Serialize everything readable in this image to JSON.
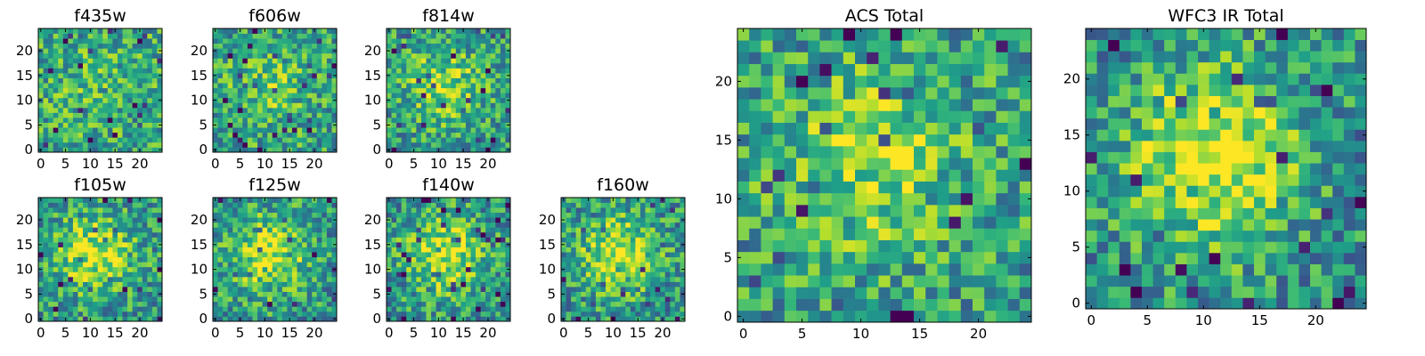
{
  "chart_data": [
    {
      "type": "heatmap",
      "title": "f435w",
      "colormap": "viridis",
      "grid_size": 25,
      "x_ticks": [
        "0",
        "5",
        "10",
        "15",
        "20"
      ],
      "y_ticks": [
        "0",
        "5",
        "10",
        "15",
        "20"
      ],
      "seed": 11,
      "blob_strength": 0.08
    },
    {
      "type": "heatmap",
      "title": "f606w",
      "colormap": "viridis",
      "grid_size": 25,
      "x_ticks": [
        "0",
        "5",
        "10",
        "15",
        "20"
      ],
      "y_ticks": [
        "0",
        "5",
        "10",
        "15",
        "20"
      ],
      "seed": 23,
      "blob_strength": 0.18
    },
    {
      "type": "heatmap",
      "title": "f814w",
      "colormap": "viridis",
      "grid_size": 25,
      "x_ticks": [
        "0",
        "5",
        "10",
        "15",
        "20"
      ],
      "y_ticks": [
        "0",
        "5",
        "10",
        "15",
        "20"
      ],
      "seed": 37,
      "blob_strength": 0.3
    },
    {
      "type": "heatmap",
      "title": "f105w",
      "colormap": "viridis",
      "grid_size": 25,
      "x_ticks": [
        "0",
        "5",
        "10",
        "15",
        "20"
      ],
      "y_ticks": [
        "0",
        "5",
        "10",
        "15",
        "20"
      ],
      "seed": 41,
      "blob_strength": 0.4
    },
    {
      "type": "heatmap",
      "title": "f125w",
      "colormap": "viridis",
      "grid_size": 25,
      "x_ticks": [
        "0",
        "5",
        "10",
        "15",
        "20"
      ],
      "y_ticks": [
        "0",
        "5",
        "10",
        "15",
        "20"
      ],
      "seed": 53,
      "blob_strength": 0.4
    },
    {
      "type": "heatmap",
      "title": "f140w",
      "colormap": "viridis",
      "grid_size": 25,
      "x_ticks": [
        "0",
        "5",
        "10",
        "15",
        "20"
      ],
      "y_ticks": [
        "0",
        "5",
        "10",
        "15",
        "20"
      ],
      "seed": 67,
      "blob_strength": 0.42
    },
    {
      "type": "heatmap",
      "title": "f160w",
      "colormap": "viridis",
      "grid_size": 25,
      "x_ticks": [
        "0",
        "5",
        "10",
        "15",
        "20"
      ],
      "y_ticks": [
        "0",
        "5",
        "10",
        "15",
        "20"
      ],
      "seed": 79,
      "blob_strength": 0.42
    },
    {
      "type": "heatmap",
      "title": "ACS Total",
      "colormap": "viridis",
      "grid_size": 25,
      "x_ticks": [
        "0",
        "5",
        "10",
        "15",
        "20"
      ],
      "y_ticks": [
        "0",
        "5",
        "10",
        "15",
        "20"
      ],
      "seed": 97,
      "blob_strength": 0.28
    },
    {
      "type": "heatmap",
      "title": "WFC3 IR Total",
      "colormap": "viridis",
      "grid_size": 25,
      "x_ticks": [
        "0",
        "5",
        "10",
        "15",
        "20"
      ],
      "y_ticks": [
        "0",
        "5",
        "10",
        "15",
        "20"
      ],
      "seed": 131,
      "blob_strength": 0.5
    }
  ]
}
